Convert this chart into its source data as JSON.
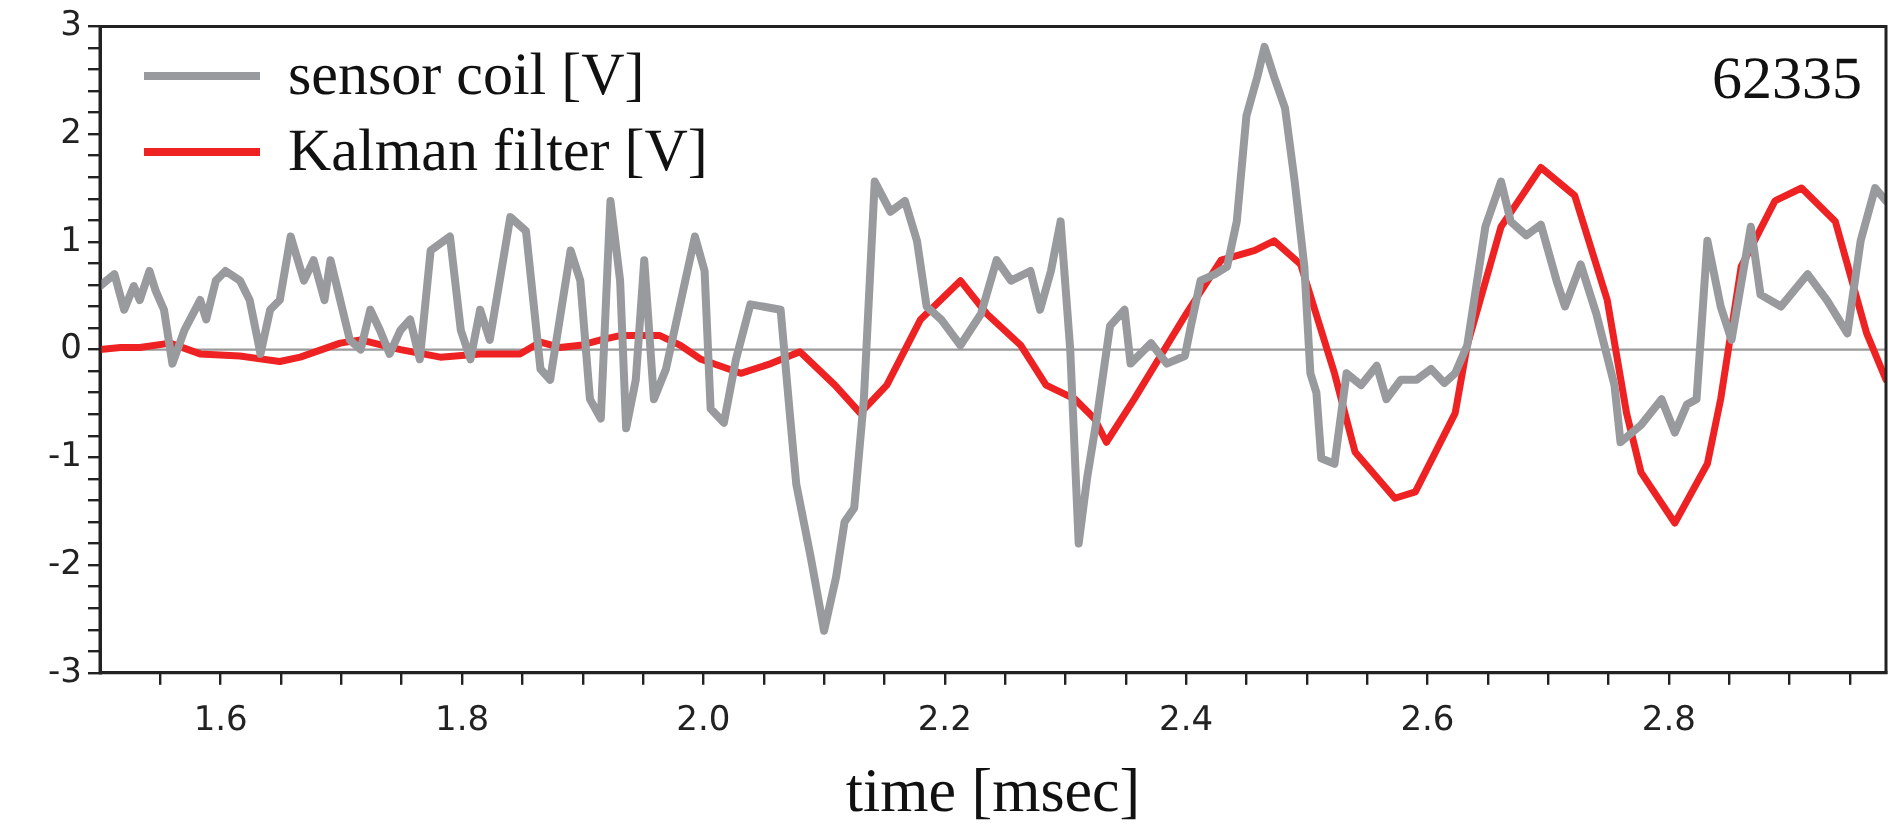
{
  "chart_data": {
    "type": "line",
    "xlabel": "time [msec]",
    "legend": "top left",
    "marker": "none",
    "line_style": "solid",
    "grid": false,
    "annotations": [
      "62335"
    ],
    "xlim": [
      1.5,
      2.98
    ],
    "ylim": [
      -3,
      3
    ],
    "xticks": [
      {
        "value": 1.55,
        "label": null
      },
      1.6,
      {
        "value": 1.65,
        "label": null
      },
      {
        "value": 1.7,
        "label": null
      },
      {
        "value": 1.75,
        "label": null
      },
      1.8,
      {
        "value": 1.85,
        "label": null
      },
      {
        "value": 1.9,
        "label": null
      },
      {
        "value": 1.95,
        "label": null
      },
      {
        "value": 2.0,
        "label": "2.0"
      },
      {
        "value": 2.05,
        "label": null
      },
      {
        "value": 2.1,
        "label": null
      },
      {
        "value": 2.15,
        "label": null
      },
      2.2,
      {
        "value": 2.25,
        "label": null
      },
      {
        "value": 2.3,
        "label": null
      },
      {
        "value": 2.35,
        "label": null
      },
      2.4,
      {
        "value": 2.45,
        "label": null
      },
      {
        "value": 2.5,
        "label": null
      },
      {
        "value": 2.55,
        "label": null
      },
      2.6,
      {
        "value": 2.65,
        "label": null
      },
      {
        "value": 2.7,
        "label": null
      },
      {
        "value": 2.75,
        "label": null
      },
      2.8,
      {
        "value": 2.85,
        "label": null
      },
      {
        "value": 2.9,
        "label": null
      },
      {
        "value": 2.95,
        "label": null
      }
    ],
    "yticks": [
      -3,
      {
        "value": -2.8,
        "label": null
      },
      {
        "value": -2.6,
        "label": null
      },
      {
        "value": -2.4,
        "label": null
      },
      {
        "value": -2.2,
        "label": null
      },
      -2,
      {
        "value": -1.8,
        "label": null
      },
      {
        "value": -1.6,
        "label": null
      },
      {
        "value": -1.4,
        "label": null
      },
      {
        "value": -1.2,
        "label": null
      },
      -1,
      {
        "value": -0.8,
        "label": null
      },
      {
        "value": -0.6,
        "label": null
      },
      {
        "value": -0.4,
        "label": null
      },
      {
        "value": -0.2,
        "label": null
      },
      0,
      {
        "value": 0.2,
        "label": null
      },
      {
        "value": 0.4,
        "label": null
      },
      {
        "value": 0.6,
        "label": null
      },
      {
        "value": 0.8,
        "label": null
      },
      1,
      {
        "value": 1.2,
        "label": null
      },
      {
        "value": 1.4,
        "label": null
      },
      {
        "value": 1.6,
        "label": null
      },
      {
        "value": 1.8,
        "label": null
      },
      2,
      {
        "value": 2.2,
        "label": null
      },
      {
        "value": 2.4,
        "label": null
      },
      {
        "value": 2.6,
        "label": null
      },
      {
        "value": 2.8,
        "label": null
      },
      3
    ],
    "ref_lines": [
      {
        "axis": "y",
        "value": 0,
        "color": "#9a9a9a"
      }
    ],
    "series": [
      {
        "name": "sensor coil [V]",
        "color": "#999a9e",
        "x": [
          1.5,
          1.512,
          1.52,
          1.528,
          1.533,
          1.541,
          1.546,
          1.553,
          1.56,
          1.57,
          1.583,
          1.588,
          1.596,
          1.604,
          1.616,
          1.624,
          1.633,
          1.641,
          1.649,
          1.658,
          1.669,
          1.677,
          1.686,
          1.691,
          1.699,
          1.707,
          1.716,
          1.724,
          1.732,
          1.74,
          1.749,
          1.757,
          1.765,
          1.774,
          1.79,
          1.799,
          1.807,
          1.815,
          1.823,
          1.84,
          1.853,
          1.865,
          1.873,
          1.89,
          1.898,
          1.906,
          1.915,
          1.923,
          1.931,
          1.936,
          1.944,
          1.951,
          1.959,
          1.969,
          1.993,
          2.001,
          2.006,
          2.017,
          2.027,
          2.039,
          2.064,
          2.072,
          2.077,
          2.089,
          2.1,
          2.11,
          2.117,
          2.125,
          2.133,
          2.142,
          2.155,
          2.167,
          2.177,
          2.185,
          2.197,
          2.213,
          2.23,
          2.243,
          2.255,
          2.271,
          2.279,
          2.288,
          2.296,
          2.304,
          2.311,
          2.318,
          2.326,
          2.337,
          2.349,
          2.354,
          2.371,
          2.384,
          2.399,
          2.404,
          2.412,
          2.424,
          2.434,
          2.442,
          2.45,
          2.459,
          2.465,
          2.473,
          2.482,
          2.49,
          2.498,
          2.503,
          2.508,
          2.512,
          2.523,
          2.533,
          2.545,
          2.558,
          2.566,
          2.578,
          2.591,
          2.603,
          2.614,
          2.623,
          2.633,
          2.648,
          2.661,
          2.669,
          2.682,
          2.694,
          2.707,
          2.714,
          2.727,
          2.74,
          2.755,
          2.76,
          2.777,
          2.794,
          2.805,
          2.815,
          2.823,
          2.832,
          2.843,
          2.852,
          2.868,
          2.876,
          2.893,
          2.915,
          2.931,
          2.948,
          2.959,
          2.971,
          2.98
        ],
        "values": [
          0.59,
          0.7,
          0.37,
          0.59,
          0.46,
          0.73,
          0.55,
          0.37,
          -0.13,
          0.18,
          0.46,
          0.28,
          0.64,
          0.73,
          0.64,
          0.46,
          -0.04,
          0.37,
          0.46,
          1.05,
          0.64,
          0.83,
          0.46,
          0.83,
          0.46,
          0.09,
          0.0,
          0.37,
          0.18,
          -0.04,
          0.18,
          0.28,
          -0.09,
          0.92,
          1.05,
          0.18,
          -0.09,
          0.37,
          0.09,
          1.23,
          1.1,
          -0.18,
          -0.28,
          0.92,
          0.64,
          -0.46,
          -0.64,
          1.38,
          0.64,
          -0.73,
          -0.28,
          0.83,
          -0.46,
          -0.18,
          1.05,
          0.73,
          -0.55,
          -0.68,
          -0.09,
          0.42,
          0.37,
          -0.64,
          -1.25,
          -1.93,
          -2.61,
          -2.11,
          -1.6,
          -1.47,
          -0.46,
          1.56,
          1.28,
          1.38,
          1.01,
          0.4,
          0.28,
          0.04,
          0.33,
          0.83,
          0.64,
          0.73,
          0.37,
          0.73,
          1.19,
          0.0,
          -1.8,
          -1.19,
          -0.64,
          0.22,
          0.37,
          -0.13,
          0.06,
          -0.13,
          -0.06,
          0.22,
          0.64,
          0.7,
          0.77,
          1.19,
          2.17,
          2.53,
          2.81,
          2.53,
          2.24,
          1.56,
          0.77,
          -0.22,
          -0.4,
          -1.01,
          -1.06,
          -0.22,
          -0.33,
          -0.15,
          -0.46,
          -0.28,
          -0.28,
          -0.18,
          -0.31,
          -0.22,
          0.04,
          1.14,
          1.56,
          1.19,
          1.06,
          1.16,
          0.64,
          0.4,
          0.79,
          0.33,
          -0.33,
          -0.86,
          -0.7,
          -0.46,
          -0.77,
          -0.51,
          -0.46,
          1.01,
          0.4,
          0.09,
          1.14,
          0.51,
          0.4,
          0.7,
          0.46,
          0.15,
          1.01,
          1.5,
          1.38
        ]
      },
      {
        "name": "Kalman filter [V]",
        "color": "#ee2222",
        "x": [
          1.5,
          1.517,
          1.533,
          1.558,
          1.583,
          1.616,
          1.649,
          1.666,
          1.699,
          1.716,
          1.749,
          1.782,
          1.815,
          1.848,
          1.865,
          1.881,
          1.898,
          1.915,
          1.931,
          1.964,
          1.981,
          1.998,
          2.031,
          2.056,
          2.08,
          2.109,
          2.13,
          2.152,
          2.18,
          2.213,
          2.235,
          2.263,
          2.284,
          2.308,
          2.324,
          2.334,
          2.357,
          2.4,
          2.429,
          2.457,
          2.473,
          2.495,
          2.523,
          2.54,
          2.573,
          2.59,
          2.623,
          2.633,
          2.661,
          2.694,
          2.722,
          2.749,
          2.765,
          2.777,
          2.805,
          2.832,
          2.843,
          2.86,
          2.888,
          2.91,
          2.938,
          2.964,
          2.98
        ],
        "values": [
          0.0,
          0.02,
          0.02,
          0.06,
          -0.04,
          -0.06,
          -0.11,
          -0.07,
          0.06,
          0.09,
          0.0,
          -0.07,
          -0.04,
          -0.04,
          0.07,
          0.02,
          0.04,
          0.09,
          0.13,
          0.13,
          0.04,
          -0.09,
          -0.22,
          -0.13,
          -0.02,
          -0.33,
          -0.59,
          -0.33,
          0.28,
          0.64,
          0.33,
          0.04,
          -0.33,
          -0.46,
          -0.64,
          -0.86,
          -0.46,
          0.33,
          0.83,
          0.92,
          1.01,
          0.79,
          -0.22,
          -0.95,
          -1.38,
          -1.32,
          -0.59,
          0.04,
          1.14,
          1.69,
          1.43,
          0.46,
          -0.59,
          -1.14,
          -1.61,
          -1.06,
          -0.46,
          0.77,
          1.38,
          1.5,
          1.19,
          0.15,
          -0.28
        ]
      }
    ]
  }
}
